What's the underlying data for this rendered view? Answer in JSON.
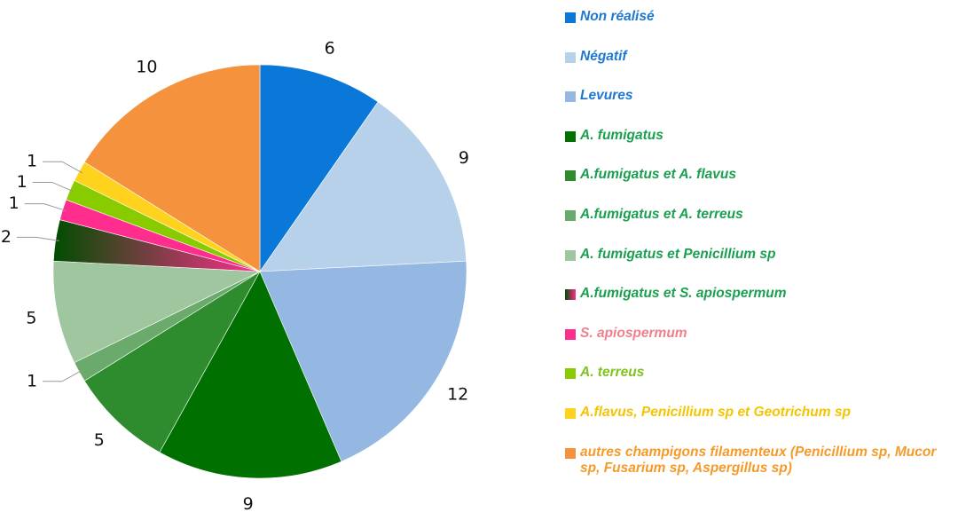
{
  "chart_data": {
    "type": "pie",
    "categories": [
      "Non réalisé",
      "Négatif",
      "Levures",
      "A. fumigatus",
      "A.fumigatus et A. flavus",
      "A.fumigatus et A. terreus",
      "A. fumigatus et Penicillium  sp",
      "A.fumigatus et S. apiospermum",
      "S. apiospermum",
      "A. terreus",
      "A.flavus, Penicillium sp et Geotrichum sp",
      "autres champigons filamenteux (Penicillium sp, Mucor sp, Fusarium sp, Aspergillus sp)"
    ],
    "values": [
      6,
      9,
      12,
      9,
      5,
      1,
      5,
      2,
      1,
      1,
      1,
      10
    ],
    "colors": [
      "#0a78d8",
      "#b8d1ea",
      "#94b8e2",
      "#007000",
      "#2e8b2e",
      "#6aaa6a",
      "#9fc69f",
      [
        "#004d00",
        "#ff2e8e"
      ],
      "#ff2e8e",
      "#88cc00",
      "#ffd21e",
      "#f5923e"
    ],
    "label_colors": [
      "#1e78d2",
      "#1e78d2",
      "#1e78d2",
      "#1aa050",
      "#1aa050",
      "#1aa050",
      "#1aa050",
      "#1aa050",
      "#f0808c",
      "#7fc31c",
      "#f5c400",
      "#f59a2a"
    ],
    "legend": "right"
  }
}
